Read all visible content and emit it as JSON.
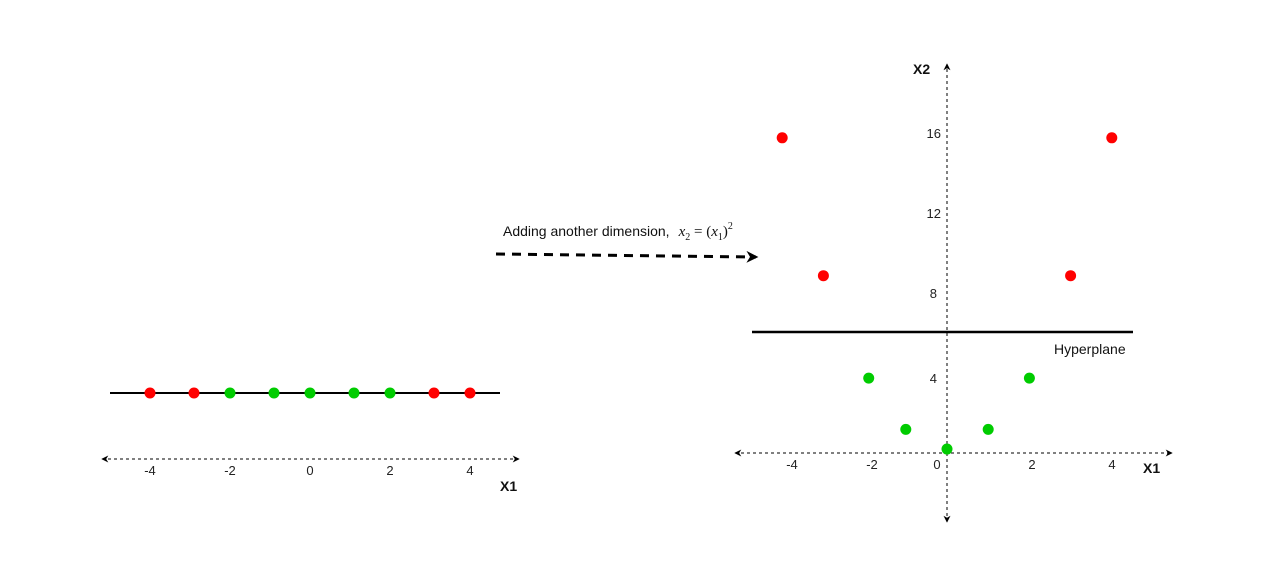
{
  "colors": {
    "red": "#ff0000",
    "green": "#00cc00",
    "axis": "#000000"
  },
  "left_plot": {
    "x_axis_label": "X1",
    "x_ticks": [
      "-4",
      "-2",
      "0",
      "2",
      "4"
    ],
    "points": [
      {
        "x1": -4,
        "color": "red"
      },
      {
        "x1": -2.9,
        "color": "red"
      },
      {
        "x1": -2,
        "color": "green"
      },
      {
        "x1": -0.9,
        "color": "green"
      },
      {
        "x1": 0,
        "color": "green"
      },
      {
        "x1": 1.1,
        "color": "green"
      },
      {
        "x1": 2,
        "color": "green"
      },
      {
        "x1": 3.1,
        "color": "red"
      },
      {
        "x1": 4,
        "color": "red"
      }
    ]
  },
  "transform": {
    "text": "Adding another dimension,",
    "formula": {
      "lhs_var": "x",
      "lhs_sub": "2",
      "eq": " = (",
      "rhs_var": "x",
      "rhs_sub": "1",
      "close": ")",
      "sup": "2"
    }
  },
  "right_plot": {
    "x_axis_label": "X1",
    "y_axis_label": "X2",
    "x_ticks": [
      "-4",
      "-2",
      "0",
      "2",
      "4"
    ],
    "y_ticks": [
      "4",
      "8",
      "12",
      "16"
    ],
    "hyperplane_label": "Hyperplane",
    "hyperplane_x2": 6,
    "points": [
      {
        "x1": -4,
        "x2": 16,
        "color": "red"
      },
      {
        "x1": -3,
        "x2": 9,
        "color": "red"
      },
      {
        "x1": 3,
        "x2": 9,
        "color": "red"
      },
      {
        "x1": 4,
        "x2": 16,
        "color": "red"
      },
      {
        "x1": -1.9,
        "x2": 3.8,
        "color": "green"
      },
      {
        "x1": 2,
        "x2": 3.8,
        "color": "green"
      },
      {
        "x1": -1,
        "x2": 1.2,
        "color": "green"
      },
      {
        "x1": 1,
        "x2": 1.2,
        "color": "green"
      },
      {
        "x1": 0,
        "x2": 0.2,
        "color": "green"
      }
    ]
  }
}
